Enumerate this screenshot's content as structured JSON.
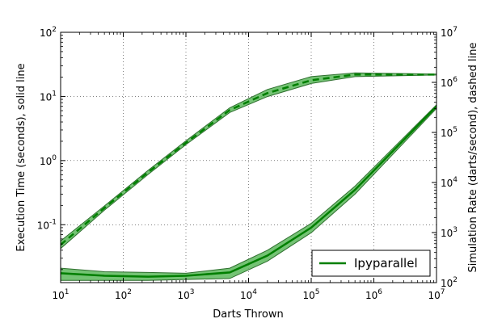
{
  "chart_data": {
    "type": "line",
    "title": "",
    "xlabel": "Darts Thrown",
    "ylabel_left": "Execution Time (seconds), solid line",
    "ylabel_right": "Simulation Rate (darts/second), dashed line",
    "xscale": "log",
    "yscale_left": "log",
    "yscale_right": "log",
    "xlim": [
      10,
      10000000
    ],
    "ylim_left": [
      0.0125,
      100
    ],
    "ylim_right": [
      100,
      10000000
    ],
    "grid": true,
    "legend_position": "lower-right",
    "x_ticks": [
      {
        "base": "10",
        "exp": "1"
      },
      {
        "base": "10",
        "exp": "2"
      },
      {
        "base": "10",
        "exp": "3"
      },
      {
        "base": "10",
        "exp": "4"
      },
      {
        "base": "10",
        "exp": "5"
      },
      {
        "base": "10",
        "exp": "6"
      },
      {
        "base": "10",
        "exp": "7"
      }
    ],
    "y_left_ticks": [
      {
        "base": "10",
        "exp": "-1"
      },
      {
        "base": "10",
        "exp": "0"
      },
      {
        "base": "10",
        "exp": "1"
      },
      {
        "base": "10",
        "exp": "2"
      }
    ],
    "y_right_ticks": [
      {
        "base": "10",
        "exp": "2"
      },
      {
        "base": "10",
        "exp": "3"
      },
      {
        "base": "10",
        "exp": "4"
      },
      {
        "base": "10",
        "exp": "5"
      },
      {
        "base": "10",
        "exp": "6"
      },
      {
        "base": "10",
        "exp": "7"
      }
    ],
    "series": [
      {
        "name": "Ipyparallel",
        "color": "#007f00",
        "band_color": "#5cb85c",
        "time": {
          "x": [
            10,
            50,
            250,
            1000,
            5000,
            20000,
            100000,
            500000,
            10000000
          ],
          "y": [
            0.0175,
            0.016,
            0.0155,
            0.016,
            0.018,
            0.033,
            0.09,
            0.35,
            7.0
          ],
          "y_low": [
            0.0135,
            0.0135,
            0.0135,
            0.014,
            0.0145,
            0.027,
            0.075,
            0.3,
            6.5
          ],
          "y_high": [
            0.021,
            0.0185,
            0.018,
            0.0175,
            0.021,
            0.04,
            0.105,
            0.4,
            7.4
          ]
        },
        "rate": {
          "x": [
            10,
            50,
            250,
            1000,
            5000,
            20000,
            100000,
            500000,
            10000000
          ],
          "y": [
            570,
            3100,
            16000,
            62000,
            280000,
            610000,
            1100000,
            1430000,
            1430000
          ],
          "y_low": [
            480,
            2800,
            14500,
            57000,
            250000,
            520000,
            950000,
            1300000,
            1400000
          ],
          "y_high": [
            680,
            3400,
            17500,
            68000,
            310000,
            720000,
            1300000,
            1550000,
            1460000
          ]
        }
      }
    ]
  }
}
